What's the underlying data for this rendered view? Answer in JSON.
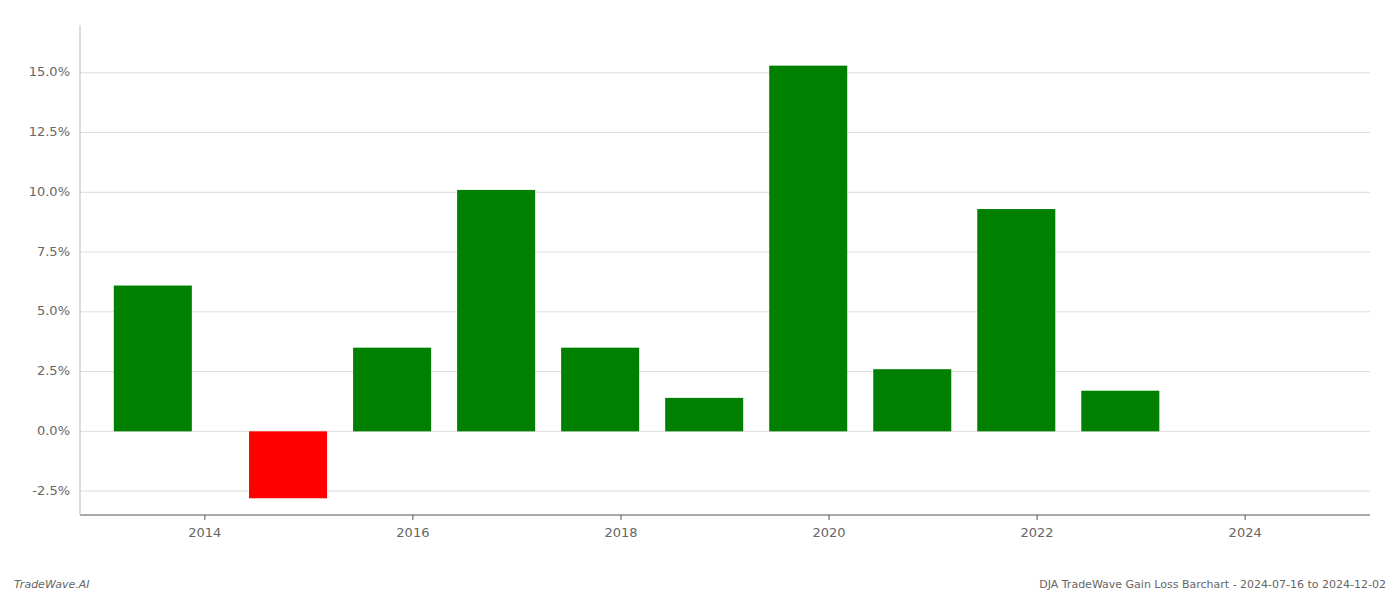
{
  "chart_data": {
    "type": "bar",
    "x": [
      2013.5,
      2014.8,
      2015.8,
      2016.8,
      2017.8,
      2018.8,
      2019.8,
      2020.8,
      2021.8,
      2022.8
    ],
    "values": [
      6.1,
      -2.8,
      3.5,
      10.1,
      3.5,
      1.4,
      15.3,
      2.6,
      9.3,
      1.7
    ],
    "colors": [
      "#008000",
      "#ff0000",
      "#008000",
      "#008000",
      "#008000",
      "#008000",
      "#008000",
      "#008000",
      "#008000",
      "#008000"
    ],
    "xlim": [
      2012.8,
      2025.2
    ],
    "xticks": [
      2014,
      2016,
      2018,
      2020,
      2022,
      2024
    ],
    "ylim": [
      -3.5,
      17.0
    ],
    "yticks": [
      {
        "value": -2.5,
        "label": "-2.5%"
      },
      {
        "value": 0.0,
        "label": "0.0%"
      },
      {
        "value": 2.5,
        "label": "2.5%"
      },
      {
        "value": 5.0,
        "label": "5.0%"
      },
      {
        "value": 7.5,
        "label": "7.5%"
      },
      {
        "value": 10.0,
        "label": "10.0%"
      },
      {
        "value": 12.5,
        "label": "12.5%"
      },
      {
        "value": 15.0,
        "label": "15.0%"
      }
    ],
    "grid": true,
    "annotations": [
      "TradeWave.AI",
      "DJA TradeWave Gain Loss Barchart - 2024-07-16 to 2024-12-02"
    ]
  }
}
